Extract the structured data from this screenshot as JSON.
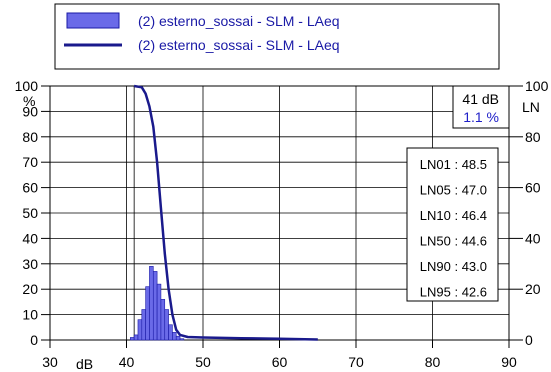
{
  "chart_data": {
    "type": "bar",
    "legend": [
      {
        "label": "(2) esterno_sossai - SLM - LAeq",
        "kind": "bars"
      },
      {
        "label": "(2) esterno_sossai - SLM - LAeq",
        "kind": "line"
      }
    ],
    "x_unit": "dB",
    "y_left_unit": "%",
    "y_right_unit": "LN",
    "xlim": [
      30,
      90
    ],
    "x_ticks": [
      30,
      40,
      50,
      60,
      70,
      80,
      90
    ],
    "ylim": [
      0,
      100
    ],
    "y_ticks": [
      0,
      10,
      20,
      30,
      40,
      50,
      60,
      70,
      80,
      90,
      100
    ],
    "right_ticks": [
      0,
      20,
      40,
      60,
      80,
      100
    ],
    "grid": true,
    "bar_width_db": 0.5,
    "bars": [
      {
        "x": 40.5,
        "y": 1
      },
      {
        "x": 41.0,
        "y": 2
      },
      {
        "x": 41.5,
        "y": 8
      },
      {
        "x": 42.0,
        "y": 12
      },
      {
        "x": 42.5,
        "y": 21
      },
      {
        "x": 43.0,
        "y": 29
      },
      {
        "x": 43.5,
        "y": 27
      },
      {
        "x": 44.0,
        "y": 22
      },
      {
        "x": 44.5,
        "y": 16
      },
      {
        "x": 45.0,
        "y": 12
      },
      {
        "x": 45.5,
        "y": 6
      },
      {
        "x": 46.0,
        "y": 3
      },
      {
        "x": 46.5,
        "y": 1.5
      },
      {
        "x": 47.0,
        "y": 0.5
      }
    ],
    "cumulative_line": [
      [
        41.0,
        100
      ],
      [
        42.0,
        99.5
      ],
      [
        42.5,
        97
      ],
      [
        43.0,
        92
      ],
      [
        43.5,
        84
      ],
      [
        44.0,
        70
      ],
      [
        44.5,
        52
      ],
      [
        45.0,
        34
      ],
      [
        45.5,
        20
      ],
      [
        46.0,
        10
      ],
      [
        46.5,
        4
      ],
      [
        47.0,
        2
      ],
      [
        48.0,
        1.2
      ],
      [
        50.0,
        1
      ],
      [
        55.0,
        0.7
      ],
      [
        60.0,
        0.5
      ],
      [
        65.0,
        0.2
      ]
    ],
    "cursor": {
      "value": "41 dB",
      "percent": "1.1 %"
    },
    "ln_values": [
      {
        "label": "LN01 : 48.5"
      },
      {
        "label": "LN05 : 47.0"
      },
      {
        "label": "LN10 : 46.4"
      },
      {
        "label": "LN50 : 44.6"
      },
      {
        "label": "LN90 : 43.0"
      },
      {
        "label": "LN95 : 42.6"
      }
    ],
    "colors": {
      "bar_fill": "#6a6ae8",
      "bar_stroke": "#1a1aa6",
      "line": "#1a1a8c",
      "legend_text": "#1a1aa6",
      "percent_text": "#2020c8",
      "axis": "#000000"
    }
  }
}
